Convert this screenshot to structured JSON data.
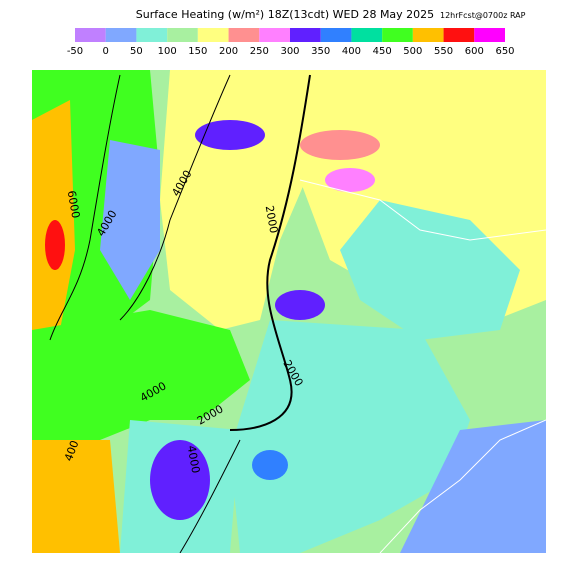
{
  "header": {
    "title": "Surface Heating (w/m²) 18Z(13cdt) WED 28 May 2025",
    "subtitle": "12hrFcst@0700z RAP"
  },
  "colorbar": {
    "labels": [
      "-50",
      "0",
      "50",
      "100",
      "150",
      "200",
      "250",
      "300",
      "350",
      "400",
      "450",
      "500",
      "550",
      "600",
      "650"
    ],
    "colors": [
      "#c080ff",
      "#80a8ff",
      "#80f0d8",
      "#a8f0a0",
      "#ffff80",
      "#ff9090",
      "#ff80ff",
      "#6020ff",
      "#3080ff",
      "#00e0a0",
      "#40ff20",
      "#ffc000",
      "#ff1010",
      "#ff00ff"
    ]
  },
  "map": {
    "contour_labels": [
      "6000",
      "4000",
      "4000",
      "2000",
      "2000",
      "4000",
      "2000",
      "4000",
      "400"
    ]
  }
}
